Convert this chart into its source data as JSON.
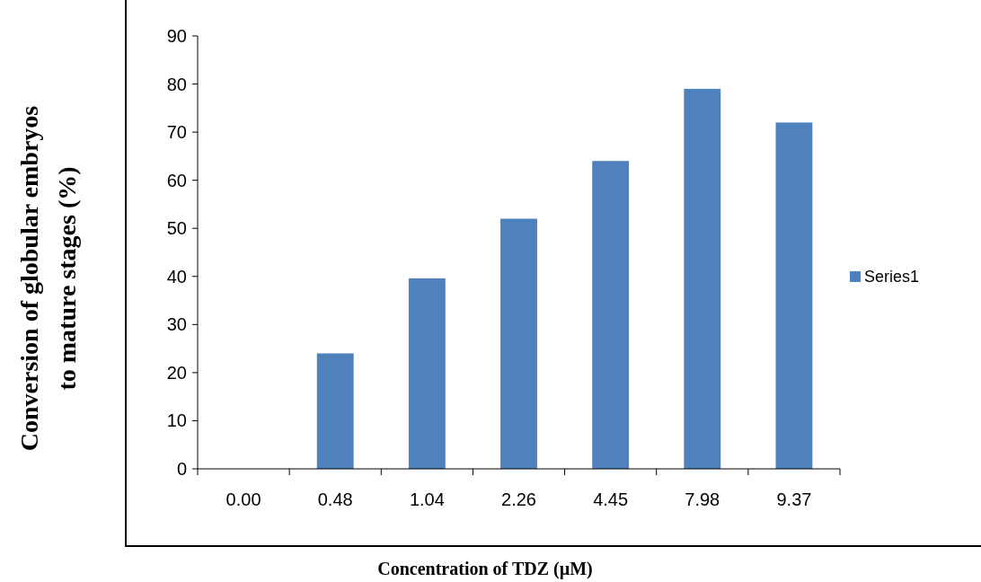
{
  "chart_data": {
    "type": "bar",
    "xlabel": "Concentration of TDZ (µM)",
    "ylabel": "Conversion of globular embryos to mature stages (%)",
    "categories": [
      "0.00",
      "0.48",
      "1.04",
      "2.26",
      "4.45",
      "7.98",
      "9.37"
    ],
    "series": [
      {
        "name": "Series1",
        "color": "#4f81bd",
        "values": [
          0,
          24,
          39.6,
          52,
          64,
          79,
          72
        ]
      }
    ],
    "ylim": [
      0,
      90
    ],
    "yticks": [
      0,
      10,
      20,
      30,
      40,
      50,
      60,
      70,
      80,
      90
    ],
    "grid": false,
    "legend": "right"
  }
}
